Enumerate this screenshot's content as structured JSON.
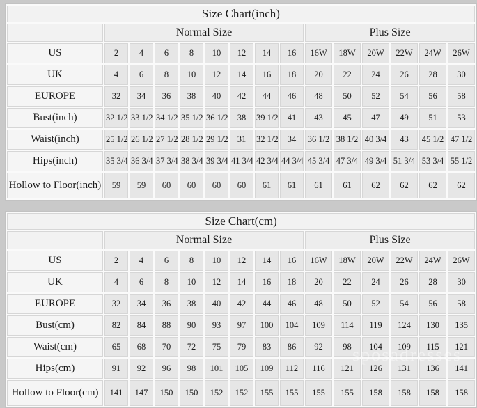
{
  "page": {
    "watermark_text": "sposadresses"
  },
  "colors": {
    "page_background": "#c9c9c9",
    "table_gap": "#fafafa",
    "header_background": "#f2f2f2",
    "group_header_background": "#ededed",
    "label_background": "#f5f5f5",
    "cell_background": "#e6e6e6",
    "border": "#d6d6d6",
    "text": "#1c1c1c"
  },
  "chart_data": [
    {
      "type": "table",
      "title": "Size Chart(inch)",
      "column_groups": [
        {
          "label": "",
          "span": 1
        },
        {
          "label": "Normal Size",
          "span": 8
        },
        {
          "label": "Plus Size",
          "span": 6
        }
      ],
      "rows": [
        {
          "label": "US",
          "values": [
            "2",
            "4",
            "6",
            "8",
            "10",
            "12",
            "14",
            "16",
            "16W",
            "18W",
            "20W",
            "22W",
            "24W",
            "26W"
          ]
        },
        {
          "label": "UK",
          "values": [
            "4",
            "6",
            "8",
            "10",
            "12",
            "14",
            "16",
            "18",
            "20",
            "22",
            "24",
            "26",
            "28",
            "30"
          ]
        },
        {
          "label": "EUROPE",
          "values": [
            "32",
            "34",
            "36",
            "38",
            "40",
            "42",
            "44",
            "46",
            "48",
            "50",
            "52",
            "54",
            "56",
            "58"
          ]
        },
        {
          "label": "Bust(inch)",
          "values": [
            "32 1/2",
            "33 1/2",
            "34 1/2",
            "35 1/2",
            "36 1/2",
            "38",
            "39 1/2",
            "41",
            "43",
            "45",
            "47",
            "49",
            "51",
            "53"
          ]
        },
        {
          "label": "Waist(inch)",
          "values": [
            "25 1/2",
            "26 1/2",
            "27 1/2",
            "28 1/2",
            "29 1/2",
            "31",
            "32 1/2",
            "34",
            "36 1/2",
            "38 1/2",
            "40 3/4",
            "43",
            "45 1/2",
            "47 1/2"
          ]
        },
        {
          "label": "Hips(inch)",
          "values": [
            "35 3/4",
            "36 3/4",
            "37 3/4",
            "38 3/4",
            "39 3/4",
            "41 3/4",
            "42 3/4",
            "44 3/4",
            "45 3/4",
            "47 3/4",
            "49 3/4",
            "51 3/4",
            "53 3/4",
            "55 1/2"
          ]
        },
        {
          "label": "Hollow to Floor(inch)",
          "values": [
            "59",
            "59",
            "60",
            "60",
            "60",
            "60",
            "61",
            "61",
            "61",
            "61",
            "62",
            "62",
            "62",
            "62"
          ],
          "tall": true
        }
      ]
    },
    {
      "type": "table",
      "title": "Size Chart(cm)",
      "column_groups": [
        {
          "label": "",
          "span": 1
        },
        {
          "label": "Normal Size",
          "span": 8
        },
        {
          "label": "Plus Size",
          "span": 6
        }
      ],
      "rows": [
        {
          "label": "US",
          "values": [
            "2",
            "4",
            "6",
            "8",
            "10",
            "12",
            "14",
            "16",
            "16W",
            "18W",
            "20W",
            "22W",
            "24W",
            "26W"
          ]
        },
        {
          "label": "UK",
          "values": [
            "4",
            "6",
            "8",
            "10",
            "12",
            "14",
            "16",
            "18",
            "20",
            "22",
            "24",
            "26",
            "28",
            "30"
          ]
        },
        {
          "label": "EUROPE",
          "values": [
            "32",
            "34",
            "36",
            "38",
            "40",
            "42",
            "44",
            "46",
            "48",
            "50",
            "52",
            "54",
            "56",
            "58"
          ]
        },
        {
          "label": "Bust(cm)",
          "values": [
            "82",
            "84",
            "88",
            "90",
            "93",
            "97",
            "100",
            "104",
            "109",
            "114",
            "119",
            "124",
            "130",
            "135"
          ]
        },
        {
          "label": "Waist(cm)",
          "values": [
            "65",
            "68",
            "70",
            "72",
            "75",
            "79",
            "83",
            "86",
            "92",
            "98",
            "104",
            "109",
            "115",
            "121"
          ]
        },
        {
          "label": "Hips(cm)",
          "values": [
            "91",
            "92",
            "96",
            "98",
            "101",
            "105",
            "109",
            "112",
            "116",
            "121",
            "126",
            "131",
            "136",
            "141"
          ]
        },
        {
          "label": "Hollow to Floor(cm)",
          "values": [
            "141",
            "147",
            "150",
            "150",
            "152",
            "152",
            "155",
            "155",
            "155",
            "155",
            "158",
            "158",
            "158",
            "158"
          ],
          "tall": true
        }
      ]
    }
  ]
}
